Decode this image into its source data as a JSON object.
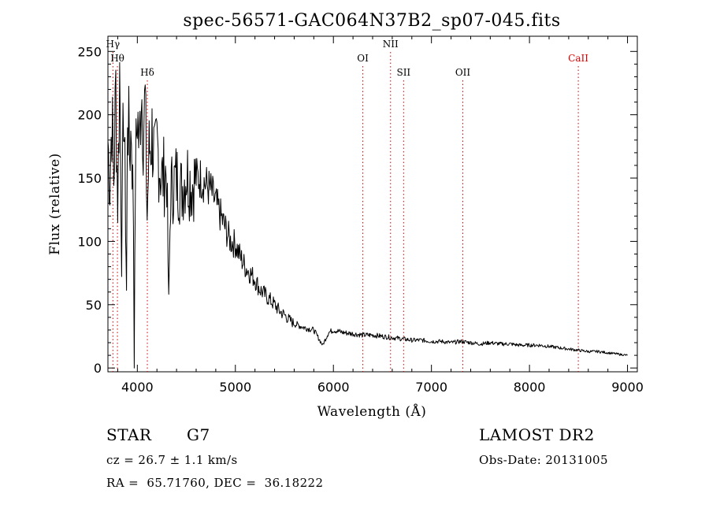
{
  "chart_data": {
    "type": "line",
    "title": "spec-56571-GAC064N37B2_sp07-045.fits",
    "xlabel": "Wavelength (Å)",
    "ylabel": "Flux (relative)",
    "xlim": [
      3700,
      9100
    ],
    "ylim": [
      -3,
      262
    ],
    "xticks": [
      4000,
      5000,
      6000,
      7000,
      8000,
      9000
    ],
    "yticks": [
      0,
      50,
      100,
      150,
      200,
      250
    ],
    "grid": false,
    "series": [
      {
        "color": "#000000",
        "points": [
          [
            3700,
            180
          ],
          [
            3720,
            145
          ],
          [
            3740,
            200
          ],
          [
            3760,
            150
          ],
          [
            3780,
            220
          ],
          [
            3800,
            130
          ],
          [
            3820,
            235
          ],
          [
            3840,
            90
          ],
          [
            3860,
            215
          ],
          [
            3880,
            120
          ],
          [
            3890,
            60
          ],
          [
            3900,
            210
          ],
          [
            3920,
            170
          ],
          [
            3940,
            190
          ],
          [
            3960,
            120
          ],
          [
            3968,
            0
          ],
          [
            3980,
            150
          ],
          [
            4000,
            205
          ],
          [
            4020,
            170
          ],
          [
            4040,
            230
          ],
          [
            4060,
            190
          ],
          [
            4080,
            210
          ],
          [
            4100,
            120
          ],
          [
            4120,
            170
          ],
          [
            4150,
            185
          ],
          [
            4180,
            160
          ],
          [
            4200,
            175
          ],
          [
            4250,
            150
          ],
          [
            4300,
            155
          ],
          [
            4320,
            50
          ],
          [
            4340,
            140
          ],
          [
            4400,
            150
          ],
          [
            4450,
            140
          ],
          [
            4500,
            155
          ],
          [
            4550,
            145
          ],
          [
            4600,
            150
          ],
          [
            4650,
            150
          ],
          [
            4700,
            145
          ],
          [
            4750,
            140
          ],
          [
            4800,
            130
          ],
          [
            4850,
            120
          ],
          [
            4900,
            110
          ],
          [
            4950,
            100
          ],
          [
            5000,
            98
          ],
          [
            5050,
            88
          ],
          [
            5100,
            80
          ],
          [
            5150,
            75
          ],
          [
            5200,
            70
          ],
          [
            5250,
            62
          ],
          [
            5300,
            58
          ],
          [
            5350,
            54
          ],
          [
            5400,
            50
          ],
          [
            5450,
            45
          ],
          [
            5500,
            42
          ],
          [
            5550,
            38
          ],
          [
            5600,
            35
          ],
          [
            5700,
            32
          ],
          [
            5800,
            30
          ],
          [
            5890,
            18
          ],
          [
            5950,
            28
          ],
          [
            6000,
            30
          ],
          [
            6100,
            28
          ],
          [
            6200,
            27
          ],
          [
            6300,
            26
          ],
          [
            6400,
            26
          ],
          [
            6500,
            25
          ],
          [
            6600,
            24
          ],
          [
            6700,
            23
          ],
          [
            6800,
            22
          ],
          [
            6900,
            22
          ],
          [
            7000,
            21
          ],
          [
            7100,
            21
          ],
          [
            7200,
            20
          ],
          [
            7300,
            21
          ],
          [
            7400,
            20
          ],
          [
            7500,
            19
          ],
          [
            7600,
            20
          ],
          [
            7700,
            19
          ],
          [
            7800,
            19
          ],
          [
            7900,
            18
          ],
          [
            8000,
            18
          ],
          [
            8100,
            18
          ],
          [
            8200,
            17
          ],
          [
            8300,
            16
          ],
          [
            8400,
            15
          ],
          [
            8500,
            14
          ],
          [
            8600,
            13
          ],
          [
            8700,
            13
          ],
          [
            8800,
            12
          ],
          [
            8900,
            11
          ],
          [
            9000,
            10
          ]
        ]
      }
    ],
    "lines": [
      {
        "label": "Hγ",
        "wavelength": 3751,
        "color": "#000000",
        "label_row": 0
      },
      {
        "label": "Hθ",
        "wavelength": 3797,
        "color": "#000000",
        "label_row": 1
      },
      {
        "label": "Hδ",
        "wavelength": 4102,
        "color": "#000000",
        "label_row": 2
      },
      {
        "label": "OI",
        "wavelength": 6300,
        "color": "#000000",
        "label_row": 1
      },
      {
        "label": "NII",
        "wavelength": 6583,
        "color": "#000000",
        "label_row": 0
      },
      {
        "label": "SII",
        "wavelength": 6716,
        "color": "#000000",
        "label_row": 2
      },
      {
        "label": "OII",
        "wavelength": 7320,
        "color": "#000000",
        "label_row": 2
      },
      {
        "label": "CaII",
        "wavelength": 8498,
        "color": "#d00000",
        "label_row": 1
      }
    ]
  },
  "info": {
    "obj_class": "STAR",
    "subclass": "G7",
    "survey": "LAMOST DR2",
    "redshift": "cz = 26.7 ± 1.1 km/s",
    "obs_date": "Obs-Date: 20131005",
    "coords": "RA =  65.71760, DEC =  36.18222"
  }
}
